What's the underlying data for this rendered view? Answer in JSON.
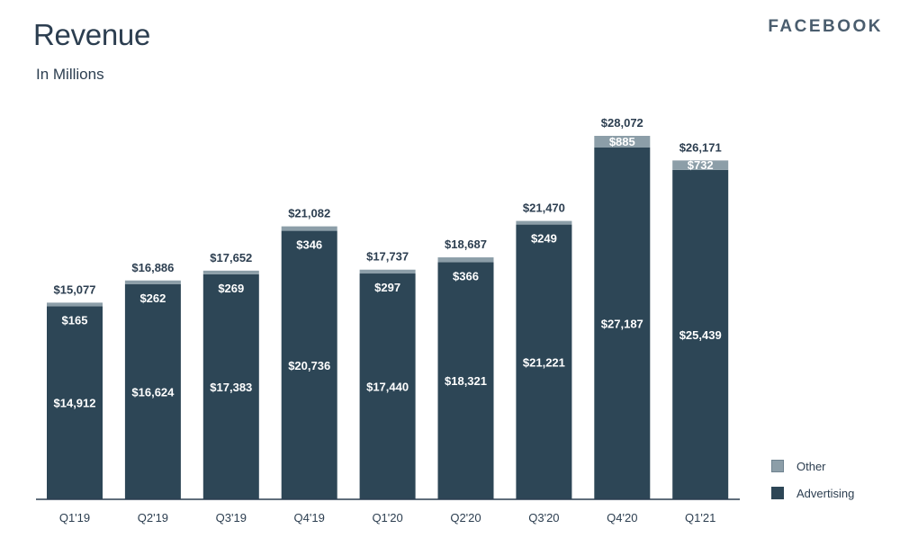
{
  "title": "Revenue",
  "subtitle": "In Millions",
  "brand": "FACEBOOK",
  "colors": {
    "advertising": "#2d4656",
    "other": "#8c9ea8",
    "axis": "#2c3e50",
    "label_dark": "#2c3e50",
    "label_light": "#ffffff"
  },
  "legend": [
    {
      "label": "Other",
      "color": "#8c9ea8"
    },
    {
      "label": "Advertising",
      "color": "#2d4656"
    }
  ],
  "chart_data": {
    "type": "bar",
    "stacked": true,
    "categories": [
      "Q1'19",
      "Q2'19",
      "Q3'19",
      "Q4'19",
      "Q1'20",
      "Q2'20",
      "Q3'20",
      "Q4'20",
      "Q1'21"
    ],
    "series": [
      {
        "name": "Advertising",
        "values": [
          14912,
          16624,
          17383,
          20736,
          17440,
          18321,
          21221,
          27187,
          25439
        ],
        "labels": [
          "$14,912",
          "$16,624",
          "$17,383",
          "$20,736",
          "$17,440",
          "$18,321",
          "$21,221",
          "$27,187",
          "$25,439"
        ]
      },
      {
        "name": "Other",
        "values": [
          165,
          262,
          269,
          346,
          297,
          366,
          249,
          885,
          732
        ],
        "labels": [
          "$165",
          "$262",
          "$269",
          "$346",
          "$297",
          "$366",
          "$249",
          "$885",
          "$732"
        ]
      }
    ],
    "totals": [
      15077,
      16886,
      17652,
      21082,
      17737,
      18687,
      21470,
      28072,
      26171
    ],
    "total_labels": [
      "$15,077",
      "$16,886",
      "$17,652",
      "$21,082",
      "$17,737",
      "$18,687",
      "$21,470",
      "$28,072",
      "$26,171"
    ],
    "ylim": [
      0,
      28072
    ],
    "grid": false,
    "legend_position": "bottom-right"
  }
}
